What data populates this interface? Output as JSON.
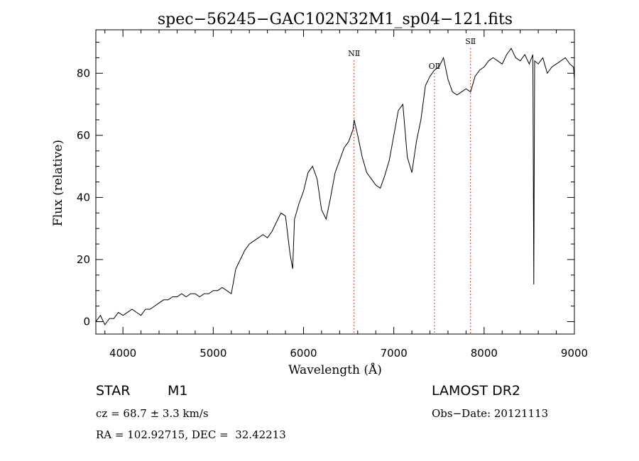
{
  "chart_data": {
    "type": "line",
    "title": "spec−56245−GAC102N32M1_sp04−121.fits",
    "xlabel": "Wavelength (Å)",
    "ylabel": "Flux (relative)",
    "xlim": [
      3700,
      9000
    ],
    "ylim": [
      -4,
      94
    ],
    "xticks": [
      "4000",
      "5000",
      "6000",
      "7000",
      "8000",
      "9000"
    ],
    "yticks": [
      "0",
      "20",
      "40",
      "60",
      "80"
    ],
    "grid": false,
    "series": [
      {
        "x": [
          3700,
          3750,
          3800,
          3850,
          3900,
          3950,
          4000,
          4050,
          4100,
          4150,
          4200,
          4250,
          4300,
          4350,
          4400,
          4450,
          4500,
          4550,
          4600,
          4650,
          4700,
          4750,
          4800,
          4850,
          4900,
          4950,
          5000,
          5050,
          5100,
          5150,
          5200,
          5250,
          5300,
          5350,
          5400,
          5450,
          5500,
          5550,
          5600,
          5650,
          5700,
          5750,
          5800,
          5850,
          5880,
          5900,
          5950,
          6000,
          6050,
          6100,
          6150,
          6200,
          6250,
          6300,
          6350,
          6400,
          6450,
          6500,
          6550,
          6560,
          6600,
          6650,
          6700,
          6750,
          6800,
          6850,
          6900,
          6950,
          7000,
          7050,
          7100,
          7150,
          7200,
          7250,
          7300,
          7350,
          7400,
          7450,
          7500,
          7550,
          7600,
          7650,
          7700,
          7750,
          7800,
          7850,
          7900,
          7950,
          8000,
          8050,
          8100,
          8150,
          8200,
          8250,
          8300,
          8350,
          8400,
          8450,
          8500,
          8540,
          8550,
          8560,
          8600,
          8650,
          8700,
          8750,
          8800,
          8850,
          8900,
          8950,
          8990,
          9000
        ],
        "values": [
          0,
          2,
          -1,
          1,
          1,
          3,
          2,
          3,
          4,
          3,
          2,
          4,
          4,
          5,
          6,
          7,
          7,
          8,
          8,
          9,
          8,
          9,
          9,
          8,
          9,
          9,
          10,
          10,
          11,
          10,
          9,
          17,
          20,
          23,
          25,
          26,
          27,
          28,
          27,
          29,
          32,
          35,
          34,
          22,
          17,
          33,
          38,
          42,
          48,
          50,
          46,
          36,
          33,
          40,
          48,
          52,
          56,
          58,
          62,
          65,
          60,
          53,
          48,
          46,
          44,
          43,
          47,
          52,
          60,
          68,
          70,
          53,
          48,
          58,
          65,
          76,
          79,
          81,
          82,
          85,
          78,
          74,
          73,
          74,
          75,
          74,
          79,
          81,
          82,
          84,
          85,
          84,
          83,
          86,
          88,
          85,
          84,
          86,
          83,
          86,
          12,
          84,
          83,
          85,
          80,
          82,
          83,
          84,
          85,
          83,
          82,
          78
        ]
      }
    ],
    "annotations": [
      {
        "label": "NⅡ",
        "x": 6560
      },
      {
        "label": "OⅡ",
        "x": 7450
      },
      {
        "label": "SⅡ",
        "x": 7850
      }
    ]
  },
  "info": {
    "class_label": "STAR",
    "subclass": "M1",
    "cz_text": "cz = 68.7 ± 3.3 km/s",
    "radec_text": "RA = 102.92715, DEC =  32.42213",
    "survey": "LAMOST DR2",
    "obs_date": "Obs−Date: 20121113"
  },
  "colors": {
    "line": "#000000",
    "annotation_line": "#cc0000",
    "background": "#ffffff"
  }
}
